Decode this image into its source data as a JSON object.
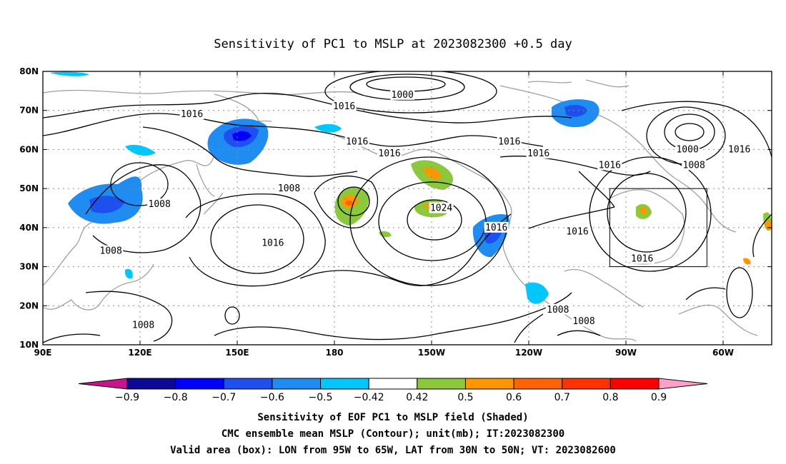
{
  "title": "Sensitivity of PC1 to MSLP at 2023082300 +0.5 day",
  "map": {
    "lat_ticks": [
      "80N",
      "70N",
      "60N",
      "50N",
      "40N",
      "30N",
      "20N",
      "10N"
    ],
    "lon_ticks": [
      "90E",
      "120E",
      "150E",
      "180",
      "150W",
      "120W",
      "90W",
      "60W"
    ],
    "lon_range": [
      90,
      315
    ],
    "lat_range": [
      10,
      80
    ],
    "valid_box": {
      "lon": [
        265,
        295
      ],
      "lat": [
        30,
        50
      ]
    },
    "contour_color": "#000000",
    "coast_color": "#a0a0a0",
    "grid": true
  },
  "contour_labels": [
    {
      "text": "1000",
      "lon": 201,
      "lat": 74
    },
    {
      "text": "1016",
      "lon": 136,
      "lat": 69
    },
    {
      "text": "1016",
      "lon": 183,
      "lat": 71
    },
    {
      "text": "1016",
      "lon": 187,
      "lat": 62
    },
    {
      "text": "1016",
      "lon": 197,
      "lat": 59
    },
    {
      "text": "1016",
      "lon": 234,
      "lat": 62
    },
    {
      "text": "1016",
      "lon": 243,
      "lat": 59
    },
    {
      "text": "1016",
      "lon": 265,
      "lat": 56
    },
    {
      "text": "1000",
      "lon": 289,
      "lat": 60
    },
    {
      "text": "1008",
      "lon": 291,
      "lat": 56
    },
    {
      "text": "1016",
      "lon": 305,
      "lat": 60
    },
    {
      "text": "1008",
      "lon": 166,
      "lat": 50
    },
    {
      "text": "1008",
      "lon": 126,
      "lat": 46
    },
    {
      "text": "1024",
      "lon": 213,
      "lat": 45
    },
    {
      "text": "1016",
      "lon": 230,
      "lat": 40
    },
    {
      "text": "1016",
      "lon": 255,
      "lat": 39
    },
    {
      "text": "1016",
      "lon": 161,
      "lat": 36
    },
    {
      "text": "1008",
      "lon": 111,
      "lat": 34
    },
    {
      "text": "1016",
      "lon": 275,
      "lat": 32
    },
    {
      "text": "1008",
      "lon": 121,
      "lat": 15
    },
    {
      "text": "1008",
      "lon": 249,
      "lat": 19
    },
    {
      "text": "1008",
      "lon": 257,
      "lat": 16
    }
  ],
  "colorbar": {
    "labels": [
      "−0.9",
      "−0.8",
      "−0.7",
      "−0.6",
      "−0.5",
      "−0.42",
      "0.42",
      "0.5",
      "0.6",
      "0.7",
      "0.8",
      "0.9"
    ],
    "colors": [
      "#0a0a96",
      "#0000ff",
      "#1e50f0",
      "#1e8cf0",
      "#00c8ff",
      "#ffffff",
      "#8cc83c",
      "#ff9600",
      "#ff6400",
      "#ff3200",
      "#ff0000"
    ],
    "low_end_color": "#c8148c",
    "high_end_color": "#ffa0c8"
  },
  "captions": {
    "line1": "Sensitivity of EOF PC1 to MSLP field (Shaded)",
    "line2": "CMC ensemble mean MSLP (Contour); unit(mb); IT:2023082300",
    "line3": "Valid area (box): LON from 95W to 65W, LAT from 30N to 50N; VT: 2023082600"
  }
}
